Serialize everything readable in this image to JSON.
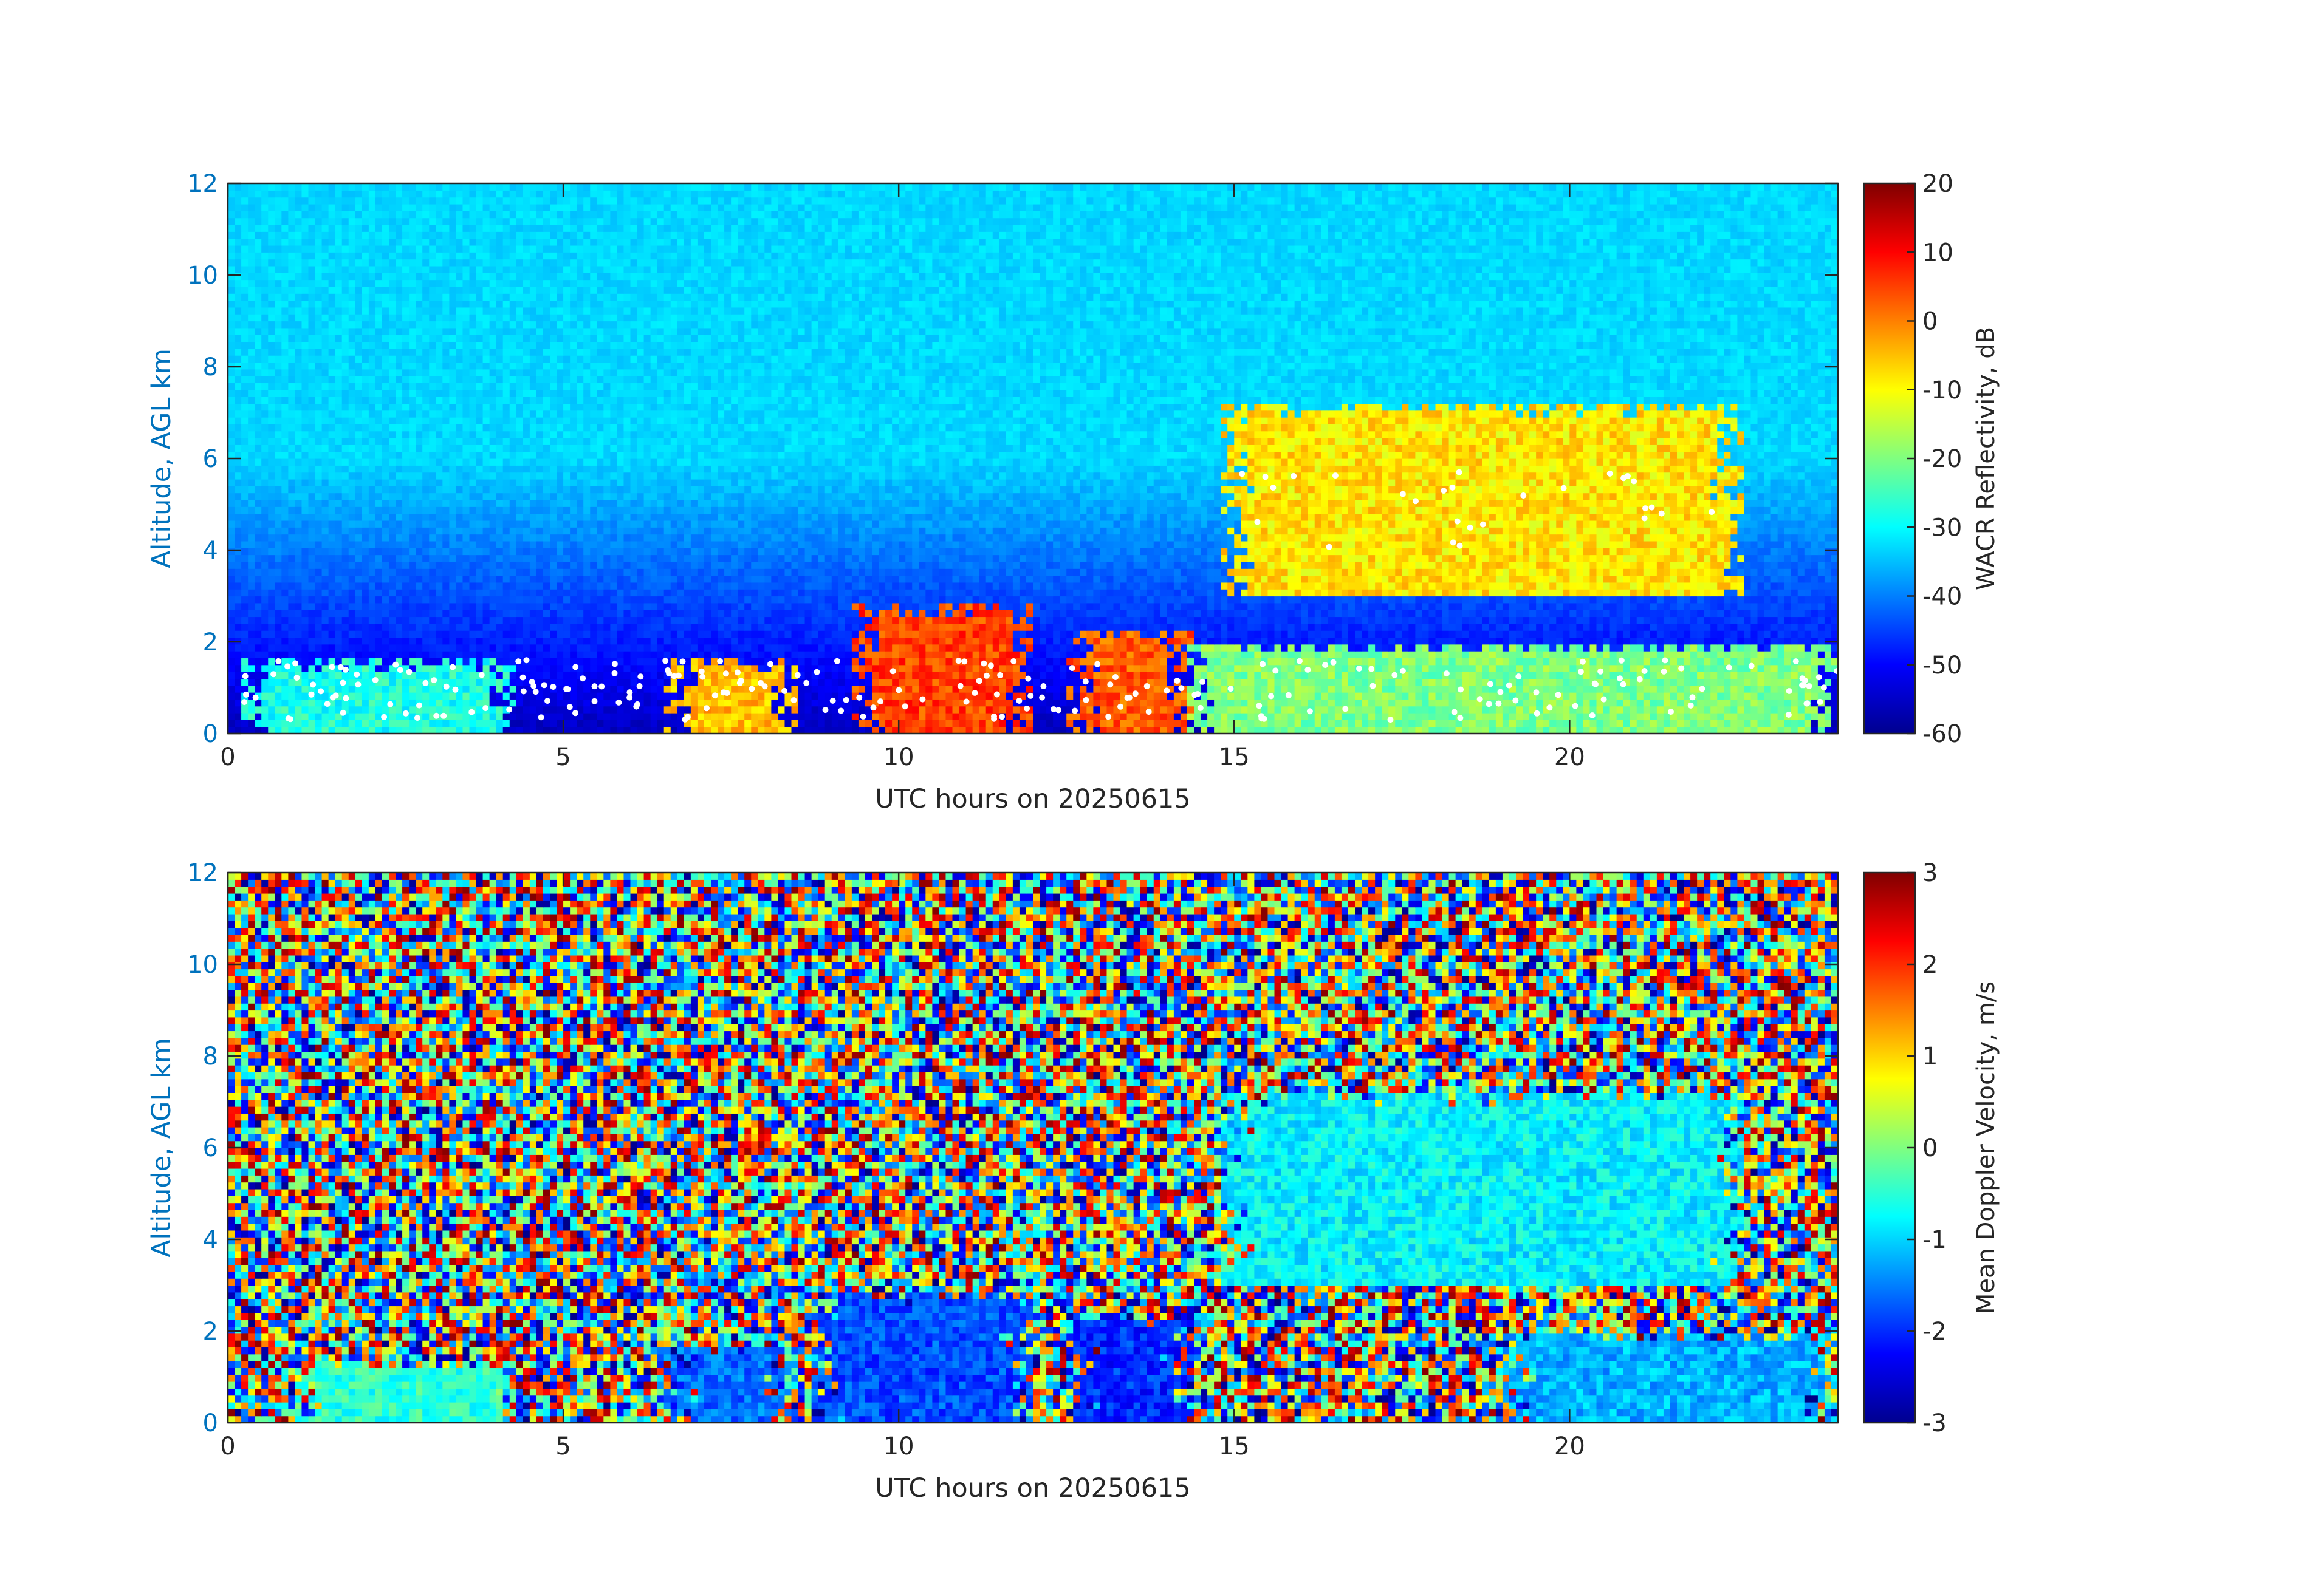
{
  "chart_data": [
    {
      "type": "heatmap",
      "name": "reflectivity",
      "xlabel": "UTC hours on 20250615",
      "ylabel": "Altitude, AGL km",
      "xlim": [
        0,
        24
      ],
      "ylim": [
        0,
        12
      ],
      "xticks": [
        "0",
        "5",
        "10",
        "15",
        "20"
      ],
      "yticks": [
        "0",
        "2",
        "4",
        "6",
        "8",
        "10",
        "12"
      ],
      "colorbar": {
        "label": "WACR Reflectivity, dB",
        "range": [
          -60,
          20
        ],
        "ticks": [
          "20",
          "10",
          "0",
          "-10",
          "-20",
          "-30",
          "-40",
          "-50",
          "-60"
        ],
        "colormap": "jet"
      },
      "background_value_surface": -55,
      "background_value_top": -33,
      "features": [
        {
          "x_start": 0.2,
          "x_end": 4.3,
          "y_bottom": 0.0,
          "y_top": 1.6,
          "value": -28,
          "kind": "low-level patchy echo"
        },
        {
          "x_start": 6.5,
          "x_end": 8.5,
          "y_bottom": 0.0,
          "y_top": 1.6,
          "value": -5,
          "kind": "convective cell"
        },
        {
          "x_start": 9.3,
          "x_end": 12.0,
          "y_bottom": 0.0,
          "y_top": 2.8,
          "value": 5,
          "kind": "convective cell"
        },
        {
          "x_start": 12.5,
          "x_end": 14.4,
          "y_bottom": 0.0,
          "y_top": 2.3,
          "value": 3,
          "kind": "convective cell"
        },
        {
          "x_start": 14.8,
          "x_end": 22.6,
          "y_bottom": 3.0,
          "y_top": 7.2,
          "value": -8,
          "kind": "mid-level cloud deck"
        },
        {
          "x_start": 14.3,
          "x_end": 24.0,
          "y_bottom": 0.0,
          "y_top": 2.0,
          "value": -20,
          "kind": "low-level patchy echo"
        }
      ],
      "overlay": {
        "color": "#ffffff",
        "description": "white cloud-base markers"
      }
    },
    {
      "type": "heatmap",
      "name": "doppler",
      "xlabel": "UTC hours on 20250615",
      "ylabel": "Altitude, AGL km",
      "xlim": [
        0,
        24
      ],
      "ylim": [
        0,
        12
      ],
      "xticks": [
        "0",
        "5",
        "10",
        "15",
        "20"
      ],
      "yticks": [
        "0",
        "2",
        "4",
        "6",
        "8",
        "10",
        "12"
      ],
      "colorbar": {
        "label": "Mean Doppler Velocity, m/s",
        "range": [
          -3,
          3
        ],
        "ticks": [
          "3",
          "2",
          "1",
          "0",
          "-1",
          "-2",
          "-3"
        ],
        "colormap": "jet"
      },
      "background": "random noise across full range",
      "features": [
        {
          "x_start": 1.0,
          "x_end": 4.3,
          "y_bottom": 0.0,
          "y_top": 1.4,
          "value": -0.5
        },
        {
          "x_start": 6.5,
          "x_end": 8.5,
          "y_bottom": 0.0,
          "y_top": 1.7,
          "value": -1.6
        },
        {
          "x_start": 8.7,
          "x_end": 12.0,
          "y_bottom": 0.0,
          "y_top": 2.8,
          "value": -1.8
        },
        {
          "x_start": 12.5,
          "x_end": 14.4,
          "y_bottom": 0.0,
          "y_top": 2.3,
          "value": -2.0
        },
        {
          "x_start": 14.8,
          "x_end": 22.6,
          "y_bottom": 3.0,
          "y_top": 7.2,
          "value": -0.8
        },
        {
          "x_start": 19.0,
          "x_end": 24.0,
          "y_bottom": 0.0,
          "y_top": 2.0,
          "value": -1.2
        }
      ]
    }
  ]
}
